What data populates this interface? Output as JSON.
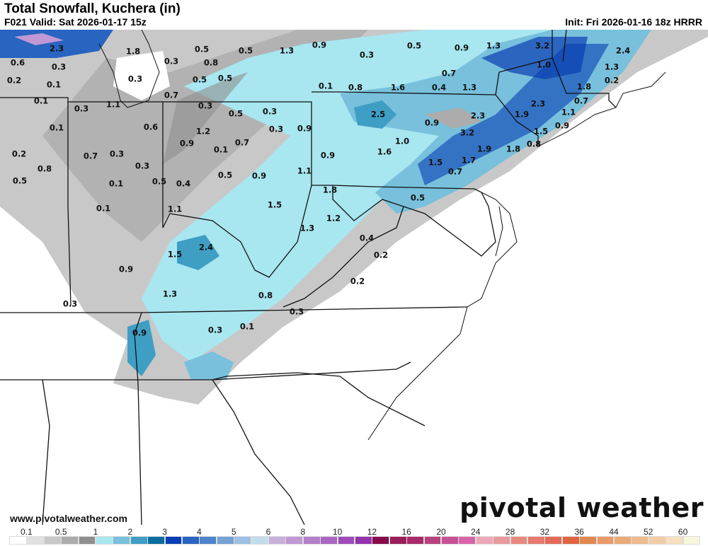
{
  "header": {
    "title": "Total Snowfall, Kuchera (in)",
    "valid": "F021 Valid: Sat 2026-01-17 15z",
    "init": "Init: Fri 2026-01-16 18z HRRR"
  },
  "branding": {
    "logo_text": "pivotal weather",
    "url": "www.pivotalweather.com"
  },
  "legend": {
    "tick_labels": [
      "0.1",
      "0.5",
      "1",
      "2",
      "3",
      "4",
      "5",
      "6",
      "8",
      "10",
      "12",
      "16",
      "20",
      "24",
      "28",
      "32",
      "36",
      "44",
      "52",
      "60"
    ],
    "colors": [
      "#ffffff",
      "#e0e0e0",
      "#c8c8c8",
      "#acacac",
      "#8f8f8f",
      "#a8e6f0",
      "#78c0dc",
      "#3e9ec4",
      "#0a6e9e",
      "#0a3eb4",
      "#2864c0",
      "#4e84cc",
      "#76a2d4",
      "#9ec0e2",
      "#c2dcec",
      "#c8b0dc",
      "#c098d4",
      "#b47ec8",
      "#aa66c0",
      "#a04cb8",
      "#9432ac",
      "#880a4a",
      "#9a1e5a",
      "#a82a6a",
      "#b8407e",
      "#c85094",
      "#d864a8",
      "#eca8b8",
      "#e89a9e",
      "#e8887e",
      "#e67a6e",
      "#e46a58",
      "#e06440",
      "#e08850",
      "#e89a68",
      "#eaaa78",
      "#eebb8e",
      "#f2cca8",
      "#f6e0c0",
      "#f8f6dc"
    ]
  },
  "map": {
    "unit": "in",
    "snowfall_labels": [
      "2.3",
      "1.8",
      "0.5",
      "0.5",
      "1.3",
      "0.6",
      "0.3",
      "0.3",
      "0.8",
      "0.2",
      "0.1",
      "0.3",
      "0.5",
      "0.5",
      "0.1",
      "0.7",
      "0.3",
      "1.1",
      "0.3",
      "0.5",
      "0.3",
      "0.1",
      "0.6",
      "1.2",
      "0.3",
      "0.9",
      "0.9",
      "0.1",
      "0.7",
      "0.2",
      "0.7",
      "0.3",
      "0.8",
      "0.3",
      "1.1",
      "0.5",
      "0.1",
      "0.5",
      "0.4",
      "0.5",
      "0.9",
      "1.5",
      "0.1",
      "1.1",
      "0.9",
      "0.3",
      "0.5",
      "0.9",
      "1.3",
      "3.2",
      "2.4",
      "1.0",
      "1.3",
      "0.7",
      "0.2",
      "0.1",
      "0.8",
      "1.6",
      "0.4",
      "1.3",
      "1.8",
      "0.7",
      "2.3",
      "1.1",
      "1.9",
      "2.5",
      "2.3",
      "0.9",
      "0.9",
      "1.5",
      "3.2",
      "1.0",
      "0.8",
      "1.9",
      "1.8",
      "1.6",
      "0.9",
      "1.5",
      "1.7",
      "0.7",
      "1.8",
      "0.5",
      "1.2",
      "1.3",
      "0.4",
      "2.4",
      "1.5",
      "0.2",
      "0.9",
      "0.2",
      "1.3",
      "0.8",
      "0.3",
      "0.3",
      "0.1",
      "0.3",
      "0.9"
    ]
  }
}
